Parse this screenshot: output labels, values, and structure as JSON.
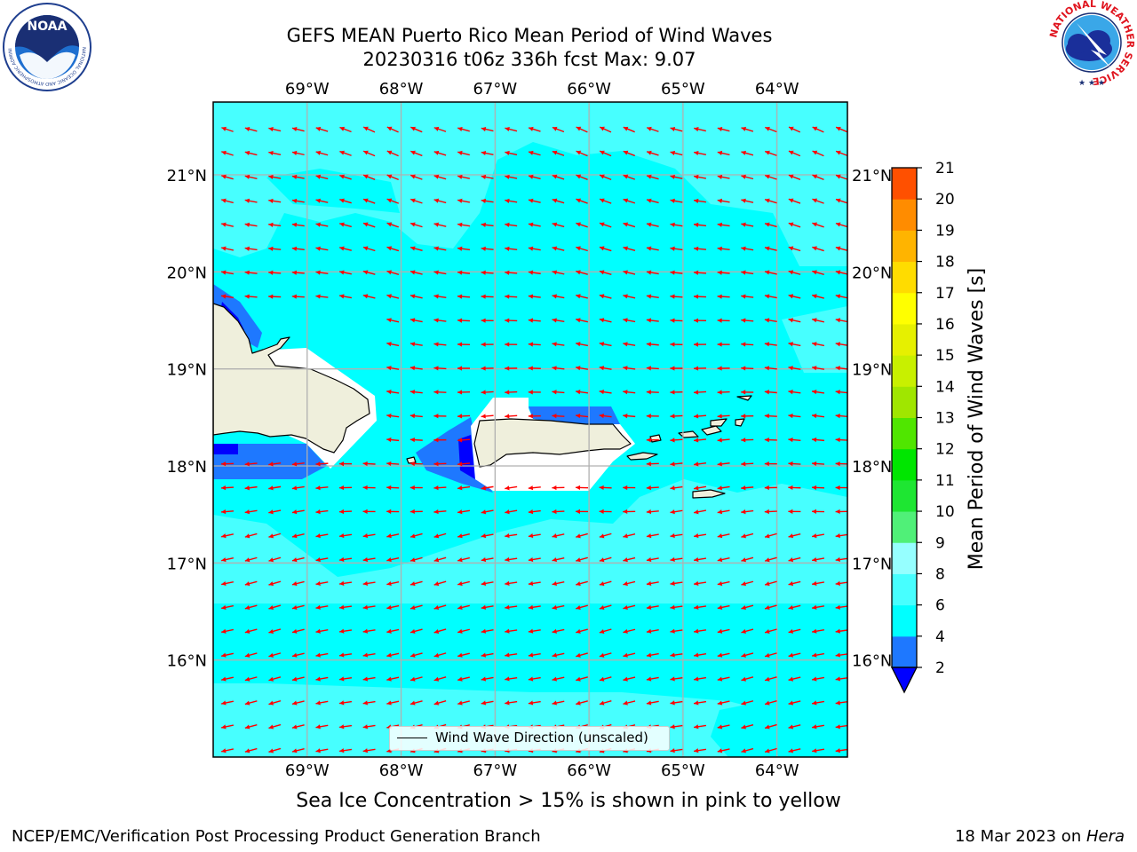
{
  "title": {
    "line1": "GEFS MEAN Puerto Rico Mean Period of Wind Waves",
    "line2": "20230316 t06z 336h fcst   Max: 9.07"
  },
  "map": {
    "lon_range": [
      -70.0,
      -63.25
    ],
    "lat_range": [
      15.0,
      21.75
    ],
    "lon_ticks": [
      {
        "value": -69,
        "label": "69°W"
      },
      {
        "value": -68,
        "label": "68°W"
      },
      {
        "value": -67,
        "label": "67°W"
      },
      {
        "value": -66,
        "label": "66°W"
      },
      {
        "value": -65,
        "label": "65°W"
      },
      {
        "value": -64,
        "label": "64°W"
      }
    ],
    "lat_ticks": [
      {
        "value": 16,
        "label": "16°N"
      },
      {
        "value": 17,
        "label": "17°N"
      },
      {
        "value": 18,
        "label": "18°N"
      },
      {
        "value": 19,
        "label": "19°N"
      },
      {
        "value": 20,
        "label": "20°N"
      },
      {
        "value": 21,
        "label": "21°N"
      }
    ],
    "ocean_color": "#00ffff",
    "land_color": "#efefdc",
    "arrow_color": "#ff0000"
  },
  "legend": {
    "label": "Wind Wave Direction (unscaled)"
  },
  "colorbar": {
    "label": "Mean Period of Wind Waves [s]",
    "ticks": [
      "2",
      "4",
      "6",
      "8",
      "9",
      "10",
      "11",
      "12",
      "13",
      "14",
      "15",
      "16",
      "17",
      "18",
      "19",
      "20",
      "21"
    ],
    "colors": [
      "#1e78ff",
      "#00ffff",
      "#47ffff",
      "#96ffff",
      "#50f078",
      "#1ee632",
      "#00e600",
      "#50e600",
      "#a0e600",
      "#c8f000",
      "#e6f000",
      "#ffff00",
      "#ffdc00",
      "#ffb400",
      "#ff8c00",
      "#ff5000",
      "#ff2800",
      "#ff0000"
    ],
    "extend_color": "#0000ff"
  },
  "seaice_note": "Sea Ice Concentration > 15% is shown in pink to yellow",
  "footer": {
    "left": "NCEP/EMC/Verification Post Processing Product Generation Branch",
    "date": "18 Mar 2023 on ",
    "host": "Hera"
  },
  "logos": {
    "noaa_text": "NOAA",
    "noaa_ring": "NATIONAL OCEANIC AND ATMOSPHERIC ADMINISTRATION · U.S. DEPARTMENT OF COMMERCE",
    "nws_ring": "NATIONAL WEATHER SERVICE"
  }
}
